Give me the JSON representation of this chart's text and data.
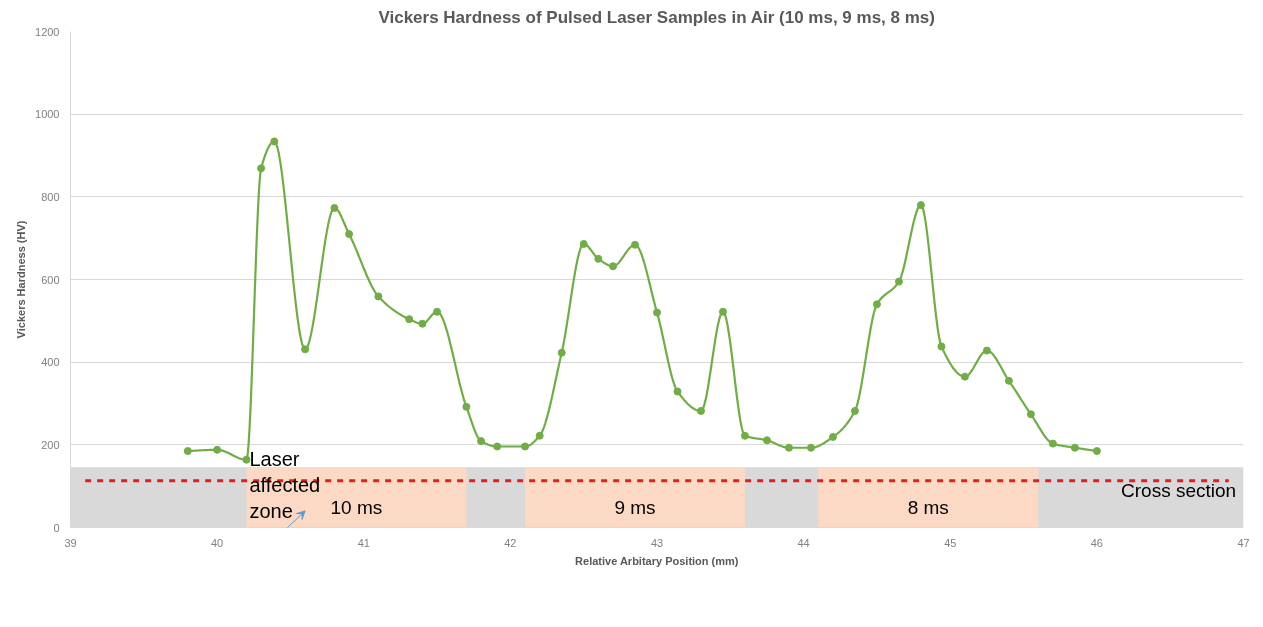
{
  "chart_data": {
    "type": "line",
    "title": "Vickers Hardness of Pulsed Laser Samples in Air (10 ms, 9 ms, 8 ms)",
    "xlabel": "Relative Arbitary Position (mm)",
    "ylabel": "Vickers Hardness (HV)",
    "x": [
      39.8,
      40.0,
      40.2,
      40.3,
      40.39,
      40.6,
      40.8,
      40.9,
      41.1,
      41.31,
      41.4,
      41.5,
      41.7,
      41.8,
      41.91,
      42.1,
      42.2,
      42.35,
      42.5,
      42.6,
      42.7,
      42.85,
      43.0,
      43.14,
      43.3,
      43.45,
      43.6,
      43.75,
      43.9,
      44.05,
      44.2,
      44.35,
      44.5,
      44.65,
      44.8,
      44.94,
      45.1,
      45.25,
      45.4,
      45.55,
      45.7,
      45.85,
      46.0
    ],
    "series": [
      {
        "color": "#70ad47",
        "values": [
          185,
          188,
          164,
          869,
          934,
          431,
          773,
          710,
          559,
          504,
          493,
          522,
          292,
          209,
          196,
          196,
          222,
          423,
          686,
          650,
          632,
          684,
          520,
          329,
          282,
          522,
          222,
          211,
          193,
          193,
          219,
          282,
          540,
          595,
          780,
          438,
          365,
          428,
          355,
          274,
          203,
          193,
          185
        ]
      }
    ],
    "xlim": [
      39,
      47
    ],
    "ylim": [
      0,
      1200
    ],
    "xticks": [
      39,
      40,
      41,
      42,
      43,
      44,
      45,
      46,
      47
    ],
    "yticks": [
      0,
      200,
      400,
      600,
      800,
      1000,
      1200
    ],
    "grid": "y",
    "marker": "circle",
    "line_style": "solid",
    "bands": [
      {
        "axis": "y",
        "from": 0,
        "to": 146,
        "label": "Cross section",
        "color": "#d9d9d9"
      },
      {
        "axis": "x",
        "from": 40.2,
        "to": 41.7,
        "label": "10 ms",
        "color": "#fbd9c4"
      },
      {
        "axis": "x",
        "from": 42.1,
        "to": 43.6,
        "label": "9 ms",
        "color": "#fbd9c4"
      },
      {
        "axis": "x",
        "from": 44.1,
        "to": 45.6,
        "label": "8 ms",
        "color": "#fbd9c4"
      }
    ],
    "ref_lines": [
      {
        "axis": "y",
        "value": 113,
        "color": "#e02020",
        "line_style": "dashed"
      }
    ],
    "annotations": [
      "Laser affected zone"
    ]
  }
}
